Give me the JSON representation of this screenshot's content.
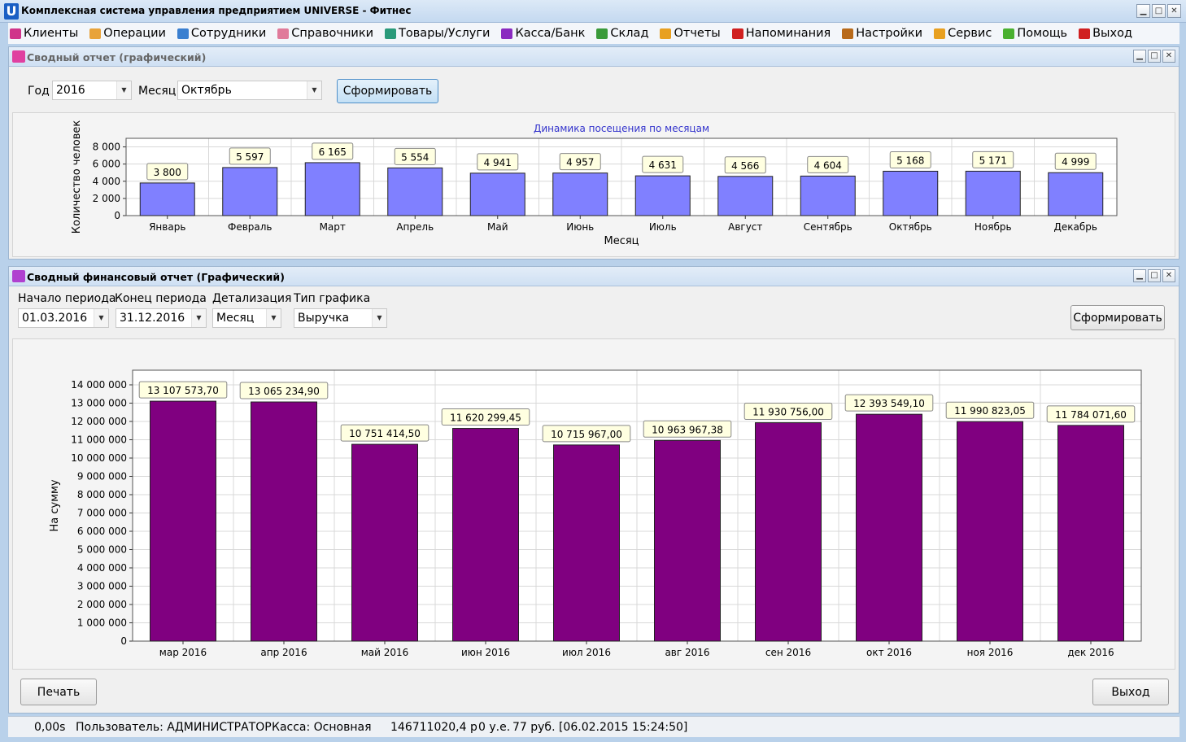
{
  "app": {
    "logo": "U",
    "title": "Комплексная система управления предприятием UNIVERSE - Фитнес"
  },
  "window_buttons": {
    "minimize": "▁",
    "maximize": "□",
    "close": "✕"
  },
  "menu": [
    {
      "label": "Клиенты",
      "icon": "clients-icon",
      "color": "#d0348a"
    },
    {
      "label": "Операции",
      "icon": "operations-icon",
      "color": "#e8a33a"
    },
    {
      "label": "Сотрудники",
      "icon": "employees-icon",
      "color": "#3a7fd0"
    },
    {
      "label": "Справочники",
      "icon": "reference-icon",
      "color": "#e07a9a"
    },
    {
      "label": "Товары/Услуги",
      "icon": "goods-icon",
      "color": "#2a9a7a"
    },
    {
      "label": "Касса/Банк",
      "icon": "cash-icon",
      "color": "#8a2ac0"
    },
    {
      "label": "Склад",
      "icon": "warehouse-icon",
      "color": "#3a9a3a"
    },
    {
      "label": "Отчеты",
      "icon": "reports-icon",
      "color": "#e8a020"
    },
    {
      "label": "Напоминания",
      "icon": "reminder-icon",
      "color": "#d02020"
    },
    {
      "label": "Настройки",
      "icon": "settings-icon",
      "color": "#b86a1a"
    },
    {
      "label": "Сервис",
      "icon": "service-icon",
      "color": "#e8a020"
    },
    {
      "label": "Помощь",
      "icon": "help-icon",
      "color": "#4ab030"
    },
    {
      "label": "Выход",
      "icon": "exit-icon",
      "color": "#d02020"
    }
  ],
  "panel1": {
    "title": "Сводный отчет (графический)",
    "year_label": "Год",
    "year_value": "2016",
    "month_label": "Месяц",
    "month_value": "Октябрь",
    "button": "Сформировать"
  },
  "panel2": {
    "title": "Сводный финансовый отчет (Графический)",
    "start_label": "Начало периода",
    "start_value": "01.03.2016",
    "end_label": "Конец периода",
    "end_value": "31.12.2016",
    "detail_label": "Детализация",
    "detail_value": "Месяц",
    "type_label": "Тип графика",
    "type_value": "Выручка",
    "button": "Сформировать",
    "print_button": "Печать",
    "exit_button": "Выход"
  },
  "status": {
    "time": "0,00s",
    "user": "Пользователь: АДМИНИСТРАТОР",
    "cash": "Касса: Основная",
    "amount": "146711020,4 р",
    "ue": "0 у.е.",
    "rate": "77 руб. [06.02.2015 15:24:50]"
  },
  "chart_data": [
    {
      "type": "bar",
      "title": "Динамика посещения по месяцам",
      "xlabel": "Месяц",
      "ylabel": "Количество человек",
      "ylim": [
        0,
        9000
      ],
      "yticks": [
        "0",
        "2 000",
        "4 000",
        "6 000",
        "8 000"
      ],
      "categories": [
        "Январь",
        "Февраль",
        "Март",
        "Апрель",
        "Май",
        "Июнь",
        "Июль",
        "Август",
        "Сентябрь",
        "Октябрь",
        "Ноябрь",
        "Декабрь"
      ],
      "values": [
        3800,
        5597,
        6165,
        5554,
        4941,
        4957,
        4631,
        4566,
        4604,
        5168,
        5171,
        4999
      ],
      "labels": [
        "3 800",
        "5 597",
        "6 165",
        "5 554",
        "4 941",
        "4 957",
        "4 631",
        "4 566",
        "4 604",
        "5 168",
        "5 171",
        "4 999"
      ],
      "bar_color": "#8080ff"
    },
    {
      "type": "bar",
      "xlabel": "",
      "ylabel": "На сумму",
      "ylim": [
        0,
        14800000
      ],
      "yticks": [
        "0",
        "1 000 000",
        "2 000 000",
        "3 000 000",
        "4 000 000",
        "5 000 000",
        "6 000 000",
        "7 000 000",
        "8 000 000",
        "9 000 000",
        "10 000 000",
        "11 000 000",
        "12 000 000",
        "13 000 000",
        "14 000 000"
      ],
      "categories": [
        "мар 2016",
        "апр 2016",
        "май 2016",
        "июн 2016",
        "июл 2016",
        "авг 2016",
        "сен 2016",
        "окт 2016",
        "ноя 2016",
        "дек 2016"
      ],
      "values": [
        13107573.7,
        13065234.9,
        10751414.5,
        11620299.45,
        10715967.0,
        10963967.38,
        11930756.0,
        12393549.1,
        11990823.05,
        11784071.6
      ],
      "labels": [
        "13 107 573,70",
        "13 065 234,90",
        "10 751 414,50",
        "11 620 299,45",
        "10 715 967,00",
        "10 963 967,38",
        "11 930 756,00",
        "12 393 549,10",
        "11 990 823,05",
        "11 784 071,60"
      ],
      "bar_color": "#800080"
    }
  ]
}
